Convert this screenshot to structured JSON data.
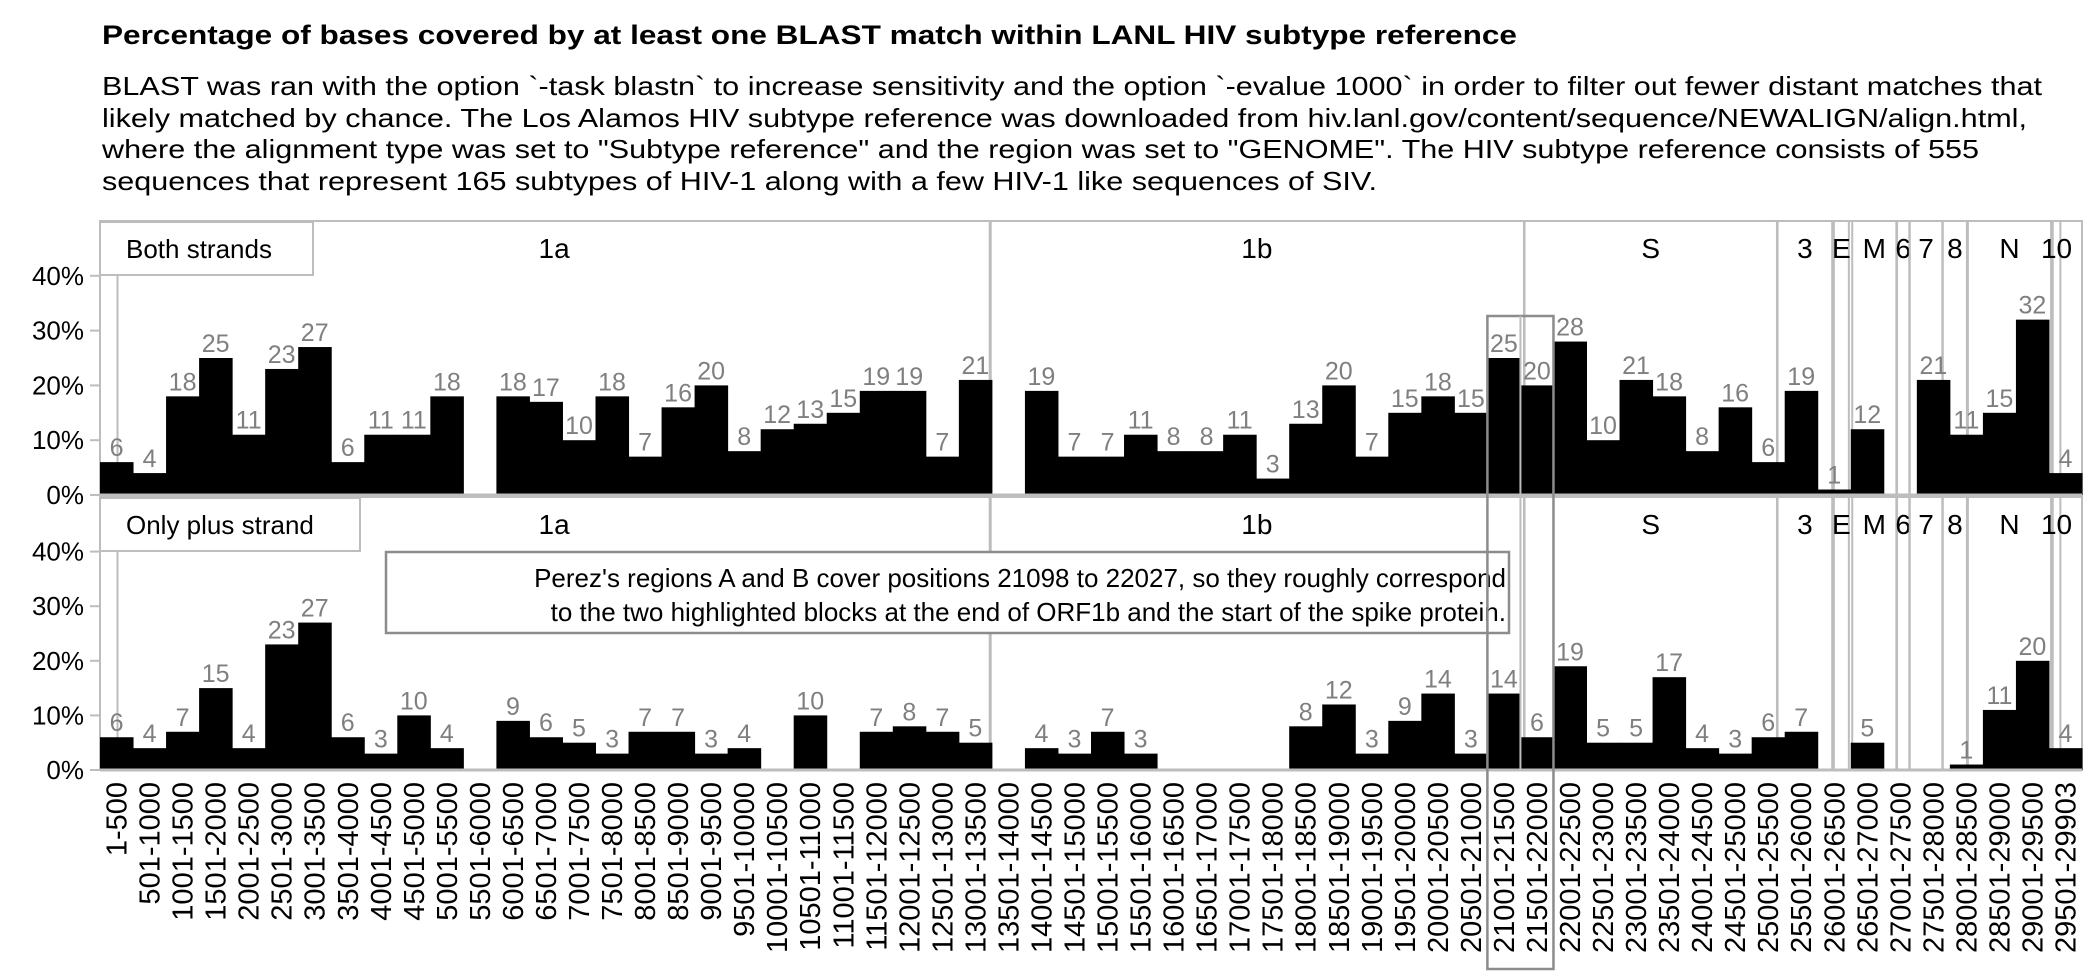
{
  "title": "Percentage of bases covered by at least one BLAST match within LANL HIV subtype reference",
  "description": [
    "BLAST was ran with the option `-task blastn` to increase sensitivity and the option `-evalue 1000` in order to filter out fewer distant matches that",
    "likely matched by chance. The Los Alamos HIV subtype reference was downloaded from hiv.lanl.gov/content/sequence/NEWALIGN/align.html,",
    "where the alignment type was set to \"Subtype reference\" and the region was set to \"GENOME\". The HIV subtype reference consists of 555",
    "sequences that represent 165 subtypes of HIV-1 along with a few HIV-1 like sequences of SIV."
  ],
  "chart_data": {
    "type": "bar",
    "ylabel": "",
    "xlabel": "",
    "ylim": [
      0,
      50
    ],
    "yticks": [
      0,
      10,
      20,
      30,
      40
    ],
    "ytick_labels": [
      "0%",
      "10%",
      "20%",
      "30%",
      "40%"
    ],
    "grid": false,
    "categories": [
      "1-500",
      "501-1000",
      "1001-1500",
      "1501-2000",
      "2001-2500",
      "2501-3000",
      "3001-3500",
      "3501-4000",
      "4001-4500",
      "4501-5000",
      "5001-5500",
      "5501-6000",
      "6001-6500",
      "6501-7000",
      "7001-7500",
      "7501-8000",
      "8001-8500",
      "8501-9000",
      "9001-9500",
      "9501-10000",
      "10001-10500",
      "10501-11000",
      "11001-11500",
      "11501-12000",
      "12001-12500",
      "12501-13000",
      "13001-13500",
      "13501-14000",
      "14001-14500",
      "14501-15000",
      "15001-15500",
      "15501-16000",
      "16001-16500",
      "16501-17000",
      "17001-17500",
      "17501-18000",
      "18001-18500",
      "18501-19000",
      "19001-19500",
      "19501-20000",
      "20001-20500",
      "20501-21000",
      "21001-21500",
      "21501-22000",
      "22001-22500",
      "22501-23000",
      "23001-23500",
      "23501-24000",
      "24001-24500",
      "24501-25000",
      "25001-25500",
      "25501-26000",
      "26001-26500",
      "26501-27000",
      "27001-27500",
      "27501-28000",
      "28001-28500",
      "28501-29000",
      "29001-29500",
      "29501-29903"
    ],
    "series": [
      {
        "name": "Both strands",
        "values": [
          6,
          4,
          18,
          25,
          11,
          23,
          27,
          6,
          11,
          11,
          18,
          0,
          18,
          17,
          10,
          18,
          7,
          16,
          20,
          8,
          12,
          13,
          15,
          19,
          19,
          7,
          21,
          0,
          19,
          7,
          7,
          11,
          8,
          8,
          11,
          3,
          13,
          20,
          7,
          15,
          18,
          15,
          25,
          20,
          28,
          10,
          21,
          18,
          8,
          16,
          6,
          19,
          1,
          12,
          0,
          21,
          11,
          15,
          32,
          4
        ]
      },
      {
        "name": "Only plus strand",
        "values": [
          6,
          4,
          7,
          15,
          4,
          23,
          27,
          6,
          3,
          10,
          4,
          0,
          9,
          6,
          5,
          3,
          7,
          7,
          3,
          4,
          0,
          10,
          0,
          7,
          8,
          7,
          5,
          0,
          4,
          3,
          7,
          3,
          0,
          0,
          0,
          0,
          8,
          12,
          3,
          9,
          14,
          3,
          14,
          6,
          19,
          5,
          5,
          17,
          4,
          3,
          6,
          7,
          0,
          5,
          0,
          0,
          1,
          11,
          20,
          4
        ]
      }
    ],
    "genes": [
      {
        "label": "1a",
        "start": 266,
        "end": 13483
      },
      {
        "label": "1b",
        "start": 13468,
        "end": 21555
      },
      {
        "label": "S",
        "start": 21563,
        "end": 25384
      },
      {
        "label": "3",
        "start": 25393,
        "end": 26220
      },
      {
        "label": "E",
        "start": 26245,
        "end": 26472
      },
      {
        "label": "M",
        "start": 26523,
        "end": 27191
      },
      {
        "label": "6",
        "start": 27202,
        "end": 27387
      },
      {
        "label": "7",
        "start": 27394,
        "end": 27887
      },
      {
        "label": "8",
        "start": 27894,
        "end": 28259
      },
      {
        "label": "N",
        "start": 28274,
        "end": 29533
      },
      {
        "label": "10",
        "start": 29558,
        "end": 29674
      }
    ],
    "highlighted_categories": [
      "21001-21500",
      "21501-22000"
    ],
    "annotation": [
      "Perez's regions A and B cover positions 21098 to 22027, so they roughly correspond",
      "to the two highlighted blocks at the end of ORF1b and the start of the spike protein."
    ],
    "colors": {
      "bar": "#000000",
      "value_label": "#7f7f7f",
      "gene_line": "#bdbdbd",
      "highlight": "#8c8c8c"
    }
  }
}
